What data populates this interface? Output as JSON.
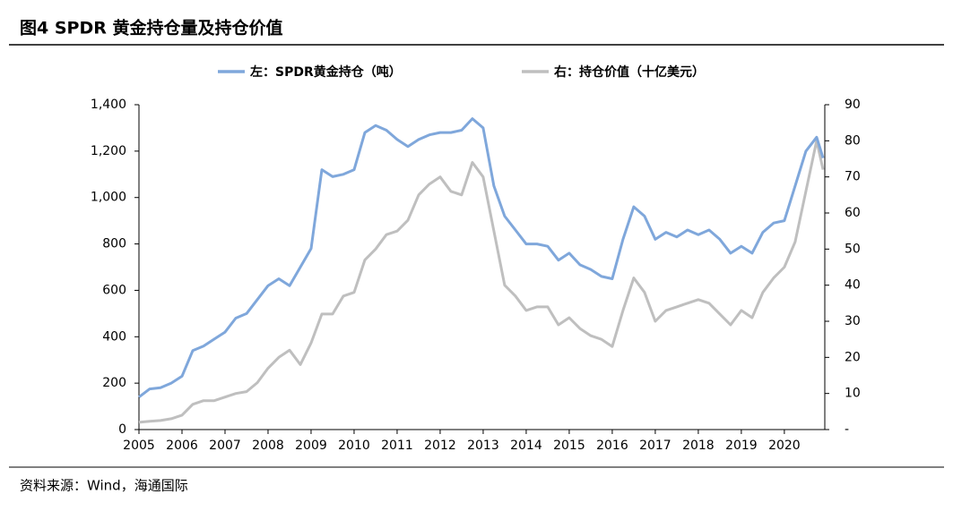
{
  "chart_data": {
    "type": "line",
    "title": "图4  SPDR 黄金持仓量及持仓价值",
    "source": "资料来源：Wind，海通国际",
    "x": [
      2005,
      2005.25,
      2005.5,
      2005.75,
      2006,
      2006.25,
      2006.5,
      2006.75,
      2007,
      2007.25,
      2007.5,
      2007.75,
      2008,
      2008.25,
      2008.5,
      2008.75,
      2009,
      2009.25,
      2009.5,
      2009.75,
      2010,
      2010.25,
      2010.5,
      2010.75,
      2011,
      2011.25,
      2011.5,
      2011.75,
      2012,
      2012.25,
      2012.5,
      2012.75,
      2013,
      2013.25,
      2013.5,
      2013.75,
      2014,
      2014.25,
      2014.5,
      2014.75,
      2015,
      2015.25,
      2015.5,
      2015.75,
      2016,
      2016.25,
      2016.5,
      2016.75,
      2017,
      2017.25,
      2017.5,
      2017.75,
      2018,
      2018.25,
      2018.5,
      2018.75,
      2019,
      2019.25,
      2019.5,
      2019.75,
      2020,
      2020.25,
      2020.5,
      2020.75,
      2020.9
    ],
    "series": [
      {
        "name": "左：SPDR黄金持仓（吨）",
        "color": "#7fa7db",
        "values": [
          140,
          175,
          180,
          200,
          230,
          340,
          360,
          390,
          420,
          480,
          500,
          560,
          620,
          650,
          620,
          700,
          780,
          1120,
          1090,
          1100,
          1120,
          1280,
          1310,
          1290,
          1250,
          1220,
          1250,
          1270,
          1280,
          1280,
          1290,
          1340,
          1300,
          1050,
          920,
          860,
          800,
          800,
          790,
          730,
          760,
          710,
          690,
          660,
          650,
          820,
          960,
          920,
          820,
          850,
          830,
          860,
          840,
          860,
          820,
          760,
          790,
          760,
          850,
          890,
          900,
          1050,
          1200,
          1260,
          1170
        ]
      },
      {
        "name": "右：持仓价值（十亿美元）",
        "color": "#bfbfbf",
        "axis": "y2",
        "values": [
          2,
          2.3,
          2.5,
          3,
          4,
          7,
          8,
          8,
          9,
          10,
          10.5,
          13,
          17,
          20,
          22,
          18,
          24,
          32,
          32,
          37,
          38,
          47,
          50,
          54,
          55,
          58,
          65,
          68,
          70,
          66,
          65,
          74,
          70,
          55,
          40,
          37,
          33,
          34,
          34,
          29,
          31,
          28,
          26,
          25,
          23,
          33,
          42,
          38,
          30,
          33,
          34,
          35,
          36,
          35,
          32,
          29,
          33,
          31,
          38,
          42,
          45,
          52,
          66,
          80,
          72
        ]
      }
    ],
    "xlim": [
      2005,
      2020.94
    ],
    "xticks": [
      2005,
      2006,
      2007,
      2008,
      2009,
      2010,
      2011,
      2012,
      2013,
      2014,
      2015,
      2016,
      2017,
      2018,
      2019,
      2020
    ],
    "ylim": [
      0,
      1400
    ],
    "yticks": [
      0,
      200,
      400,
      600,
      800,
      {
        "value": 1000,
        "label": "1,000"
      },
      {
        "value": 1200,
        "label": "1,200"
      },
      {
        "value": 1400,
        "label": "1,400"
      }
    ],
    "y2lim": [
      0,
      90
    ],
    "y2ticks": [
      {
        "value": 0,
        "label": "-"
      },
      10,
      20,
      30,
      40,
      50,
      60,
      70,
      80,
      90
    ]
  }
}
